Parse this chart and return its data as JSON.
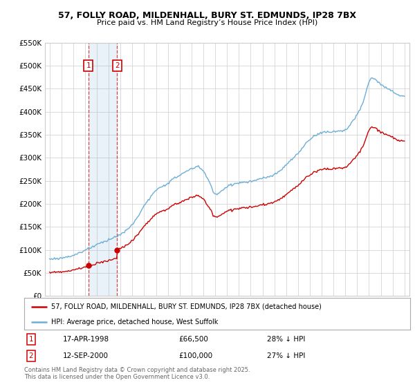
{
  "title_line1": "57, FOLLY ROAD, MILDENHALL, BURY ST. EDMUNDS, IP28 7BX",
  "title_line2": "Price paid vs. HM Land Registry’s House Price Index (HPI)",
  "hpi_color": "#6baed6",
  "price_color": "#cc0000",
  "purchase1_date_num": 1998.29,
  "purchase1_price": 66500,
  "purchase2_date_num": 2000.71,
  "purchase2_price": 100000,
  "legend_line1": "57, FOLLY ROAD, MILDENHALL, BURY ST. EDMUNDS, IP28 7BX (detached house)",
  "legend_line2": "HPI: Average price, detached house, West Suffolk",
  "background_color": "#ffffff",
  "grid_color": "#cccccc",
  "xmin": 1994.6,
  "xmax": 2025.4,
  "ymin": 0,
  "ymax": 550000,
  "yticks": [
    0,
    50000,
    100000,
    150000,
    200000,
    250000,
    300000,
    350000,
    400000,
    450000,
    500000,
    550000
  ]
}
